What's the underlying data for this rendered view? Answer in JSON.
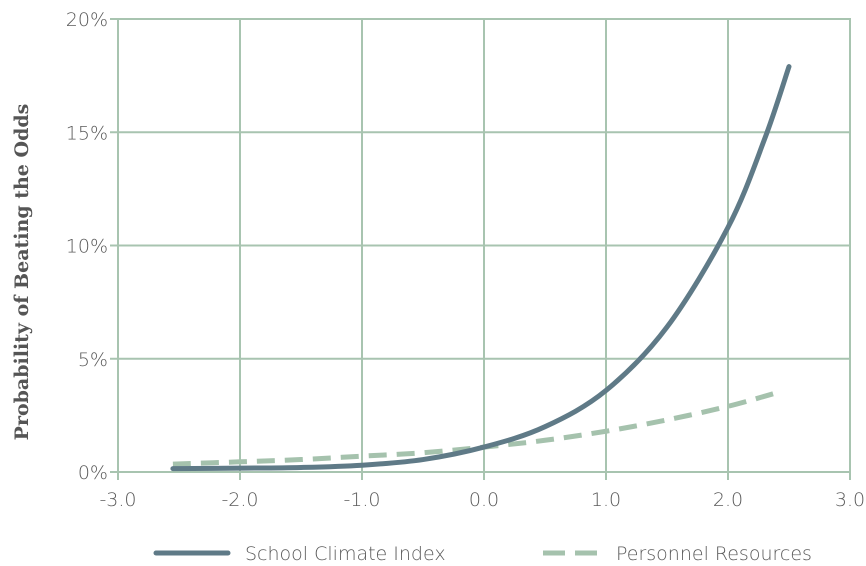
{
  "chart_data": {
    "type": "line",
    "title": "",
    "xlabel": "",
    "ylabel": "Probability of Beating the Odds",
    "xlim": [
      -3.0,
      3.0
    ],
    "ylim": [
      0,
      20
    ],
    "x_ticks": [
      "-3.0",
      "-2.0",
      "-1.0",
      "0.0",
      "1.0",
      "2.0",
      "3.0"
    ],
    "y_ticks": [
      "0%",
      "5%",
      "10%",
      "15%",
      "20%"
    ],
    "grid": true,
    "legend_position": "bottom",
    "series": [
      {
        "name": "School Climate Index",
        "color": "#5f7a87",
        "style": "solid",
        "x": [
          -2.55,
          -2.0,
          -1.5,
          -1.0,
          -0.5,
          0.0,
          0.5,
          1.0,
          1.5,
          2.0,
          2.3,
          2.5
        ],
        "y": [
          0.15,
          0.17,
          0.2,
          0.3,
          0.55,
          1.1,
          2.0,
          3.6,
          6.4,
          10.8,
          14.7,
          17.9
        ]
      },
      {
        "name": "Personnel Resources",
        "color": "#a5c2ad",
        "style": "dashed",
        "x": [
          -2.55,
          -2.0,
          -1.5,
          -1.0,
          -0.5,
          0.0,
          0.5,
          1.0,
          1.5,
          2.0,
          2.4
        ],
        "y": [
          0.35,
          0.45,
          0.55,
          0.7,
          0.85,
          1.1,
          1.4,
          1.8,
          2.3,
          2.9,
          3.5
        ]
      }
    ]
  }
}
